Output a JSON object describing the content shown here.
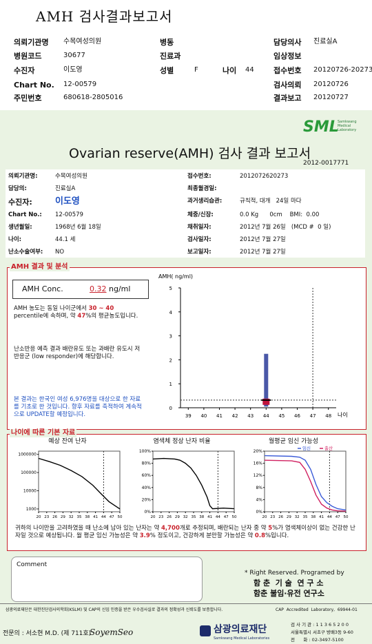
{
  "header": {
    "title": "AMH 검사결과보고서"
  },
  "summary": [
    {
      "label": "의뢰기관명",
      "value": "수목여성의원"
    },
    {
      "label": "병동"
    },
    {
      "label": "담당의사",
      "value": "진료실A"
    },
    {
      "label": "병원코드",
      "value": "30677"
    },
    {
      "label": "진료과"
    },
    {
      "label": "임상정보"
    },
    {
      "label": "수진자",
      "value": "이도영"
    },
    {
      "label": "성별",
      "value": "F"
    },
    {
      "label": "나이",
      "value": "44"
    },
    {
      "label": "접수번호",
      "value": "20120726-20273"
    },
    {
      "label": "Chart No.",
      "value": "12-00579"
    },
    {
      "label": "검사의뢰",
      "value": "20120726"
    },
    {
      "label": "주민번호",
      "value": "680618-2805016"
    },
    {
      "label": "결과보고",
      "value": "20120727"
    }
  ],
  "report": {
    "logo_text": "SML",
    "logo_caption": "Samkwang Medical Laboratory",
    "title": "Ovarian reserve(AMH) 검사 결과 보고서",
    "number": "2012-0017771",
    "fields_left": [
      {
        "label": "의뢰기관명:",
        "value": "수목여성의원"
      },
      {
        "label": "담당의:",
        "value": "진료실A"
      },
      {
        "label": "수진자:",
        "value": "이도영"
      },
      {
        "label": "Chart No.:",
        "value": "12-00579"
      },
      {
        "label": "생년월일:",
        "value": "1968년 6월 18일"
      },
      {
        "label": "나이:",
        "value": "44.1 세"
      },
      {
        "label": "난소수술여부:",
        "value": "NO"
      }
    ],
    "fields_right": [
      {
        "label": "접수번호:",
        "value": "2012072620273"
      },
      {
        "label": "최종월경일:"
      },
      {
        "label": "과거생리습관:",
        "value": "규칙적, 대개   24일 마다"
      },
      {
        "label": "체중/신장:",
        "value": "0.0 Kg      0cm    BMI:  0.00"
      },
      {
        "label": "채취일자:",
        "value": "2012년 7월 26일   (MCD #  0 일)"
      },
      {
        "label": "검사일자:",
        "value": "2012년 7월 27일"
      },
      {
        "label": "보고일자:",
        "value": "2012년 7월 27일"
      }
    ],
    "amh_section_title": "AMH 결과 및 분석",
    "amh": {
      "label": "AMH Conc.",
      "value": 0.32,
      "unit": "ng/ml"
    },
    "analysis": [
      [
        "AMH 농도는 동일 나이군에서 ",
        "30 ~ 40",
        " percentile에 속하며, 약 ",
        "47",
        "%의 평균농도입니다."
      ],
      [
        "난소반응 예측 결과 배란유도 또는 과배란 유도시 저반응군 (low responder)에 해당합니다."
      ],
      [
        "본 결과는 한국인 여성 6,976명을 대상으로 한 자료를 기초로 한 것입니다. 향후 자료를 축적하여 계속적으로 UPDATE할 예정입니다."
      ]
    ],
    "basic_section_title": "나이에 따른 기본 자료",
    "summary_text": [
      "귀하의 나이만을 고려하였을 때 난소에 남아 있는 난자는 약 ",
      "4,700",
      "개로 추정되며, 배란되는 난자 중 약 ",
      "5",
      "%가 염색체이상이 없는 건강한 난자일 것으로 예상됩니다. 월 평균 임신 가능성은 약 ",
      "3.9",
      "% 정도이고, 건강하게 분만할 가능성은 약 ",
      "0.8",
      "%입니다."
    ],
    "comment_label": "Comment",
    "credits": [
      "* Right Reserved. Programed by",
      "함 춘  기 술  연 구 소",
      "함춘 불임·유전 연구소"
    ]
  },
  "amh_chart": {
    "type": "range",
    "y_label": "AMH( ng/ml)",
    "x_label": "나이",
    "xlim": [
      38.5,
      48.5
    ],
    "xticks": [
      39,
      40,
      41,
      42,
      43,
      44,
      45,
      46,
      47,
      48
    ],
    "ylim": [
      0,
      5
    ],
    "yticks": [
      0,
      1,
      2,
      3,
      4,
      5
    ],
    "cutoff_x": 47,
    "patient_age": 44,
    "range": [
      0.05,
      2.25
    ],
    "box": [
      0.12,
      0.38
    ],
    "color": "#4a58a8",
    "box_color": "#c0143c"
  },
  "mini_charts": [
    {
      "type": "line",
      "title": "예상 잔여 난자",
      "log_scale": true,
      "x": [
        20,
        24,
        28,
        32,
        36,
        40,
        43,
        46,
        50
      ],
      "series": [
        {
          "color": "#000000",
          "values": [
            600000,
            400000,
            250000,
            130000,
            60000,
            20000,
            7000,
            2500,
            1000
          ]
        }
      ],
      "xlim": [
        20,
        50
      ],
      "xticks": [
        20,
        23,
        26,
        29,
        32,
        35,
        38,
        41,
        44,
        47,
        50
      ],
      "ylim": [
        700,
        1500000
      ],
      "yticks": [
        1000,
        10000,
        100000,
        1000000
      ],
      "reference_x": 44
    },
    {
      "type": "line",
      "title": "염색체 정상 난자 비율",
      "log_scale": false,
      "x": [
        20,
        24,
        28,
        30,
        32,
        34,
        36,
        38,
        40,
        41,
        42,
        46,
        50
      ],
      "series": [
        {
          "color": "#000000",
          "values": [
            87,
            88,
            87,
            85,
            80,
            72,
            60,
            44,
            24,
            10,
            5,
            6,
            5
          ]
        }
      ],
      "xlim": [
        20,
        50
      ],
      "xticks": [
        20,
        23,
        26,
        29,
        32,
        35,
        38,
        41,
        44,
        47,
        50
      ],
      "ylim": [
        0,
        100
      ],
      "yticks": [
        {
          "value": 0,
          "label": "0%"
        },
        {
          "value": 20,
          "label": "20%"
        },
        {
          "value": 40,
          "label": "40%"
        },
        {
          "value": 60,
          "label": "60%"
        },
        {
          "value": 80,
          "label": "80%"
        },
        {
          "value": 100,
          "label": "100%"
        }
      ],
      "reference_x": 44
    },
    {
      "type": "line",
      "title": "월평균 임신 가능성",
      "log_scale": false,
      "x": [
        20,
        30,
        33,
        35,
        37,
        39,
        41,
        43,
        45,
        47,
        50
      ],
      "series": [
        {
          "name": "임신",
          "color": "#3a5ad8",
          "values": [
            18.5,
            18.3,
            18,
            17,
            14,
            9,
            5,
            3,
            1.8,
            1,
            0.6
          ]
        },
        {
          "name": "출산",
          "color": "#d02060",
          "values": [
            17,
            16.8,
            16.3,
            14,
            10,
            5.5,
            2.5,
            1.2,
            0.6,
            0.3,
            0.2
          ]
        }
      ],
      "xlim": [
        20,
        50
      ],
      "xticks": [
        20,
        23,
        26,
        29,
        32,
        35,
        38,
        41,
        44,
        47,
        50
      ],
      "ylim": [
        0,
        20
      ],
      "yticks": [
        {
          "value": 0,
          "label": "0%"
        },
        {
          "value": 4,
          "label": "4%"
        },
        {
          "value": 8,
          "label": "8%"
        },
        {
          "value": 12,
          "label": "12%"
        },
        {
          "value": 16,
          "label": "16%"
        },
        {
          "value": 20,
          "label": "20%"
        }
      ],
      "reference_x": 44
    }
  ],
  "footer": {
    "notice": "삼광의료재단은 대한진단검사의학회(KSLM) 및 CAP의 신임 인증을 받은 우수검사실로 결과의 정확성과 신뢰도를 보증합니다.",
    "cap": "CAP  Accredited  Laboratory,  69944-01",
    "doctor": "전문의 : 서소현 M.D. (제 711호)",
    "signature": "SoyemSeo",
    "foundation": "삼광의료재단",
    "foundation_en": "Samkwang Medical Laboratories",
    "contact": [
      "검 사 기 관 : 1 1 3 6 5 2 0 0",
      "서울특별시 서초구 방배3동 9-60",
      "전      화 : 02-3497-5100"
    ]
  }
}
